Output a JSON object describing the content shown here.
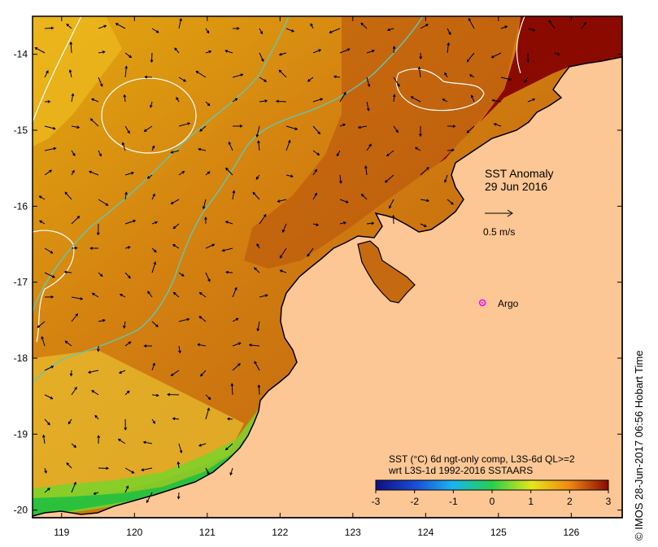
{
  "title": "SST Anomaly",
  "date": "29 Jun 2016",
  "vector_scale": {
    "label": "0.5 m/s",
    "value_ms": 0.5
  },
  "argo": {
    "label": "Argo",
    "lon": 124.78,
    "lat": -17.27,
    "color": "#ff00ff"
  },
  "caption_line1": "SST (°C) 6d ngt-only comp, L3S-6d QL>=2",
  "caption_line2": "wrt L3S-1d 1992-2016 SSTAARS",
  "colorbar": {
    "min": -3,
    "max": 3,
    "ticks": [
      "-3",
      "-2",
      "-1",
      "0",
      "1",
      "2",
      "3"
    ]
  },
  "credit": "© IMOS 28-Jun-2017 06:56 Hobart Time",
  "axes": {
    "lon_range": [
      118.6,
      126.7
    ],
    "lat_range": [
      -20.1,
      -13.5
    ],
    "lon_ticks": [
      "119",
      "120",
      "121",
      "122",
      "123",
      "124",
      "125",
      "126"
    ],
    "lat_ticks": [
      "-14",
      "-15",
      "-16",
      "-17",
      "-18",
      "-19",
      "-20"
    ]
  },
  "colors": {
    "land": "#fdc795",
    "anomaly_high": "#8b0a00",
    "contour": "#ffffff",
    "shelf": "#5ec9b6"
  }
}
